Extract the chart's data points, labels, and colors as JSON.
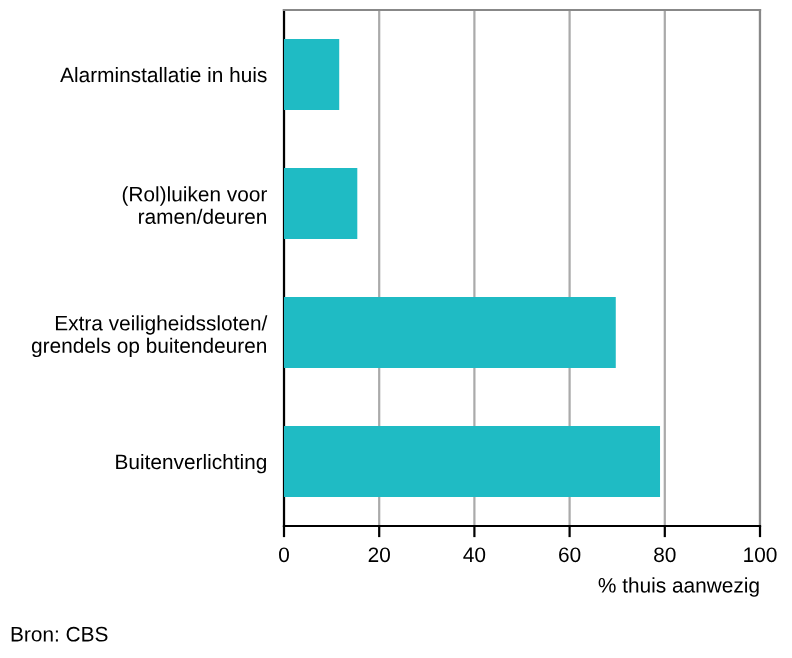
{
  "chart_data": {
    "type": "bar",
    "orientation": "horizontal",
    "categories": [
      "Alarminstallatie in huis",
      "(Rol)luiken voor\nramen/deuren",
      "Extra veiligheidssloten/\ngrendels op buitendeuren",
      "Buitenverlichting"
    ],
    "values": [
      11.6,
      15.4,
      69.7,
      79.0
    ],
    "color": "#1fbbc4",
    "xlim": [
      0,
      100
    ],
    "xticks": [
      0,
      20,
      40,
      60,
      80,
      100
    ],
    "xlabel": "% thuis aanwezig",
    "grid": "x",
    "annotations": [
      "Bron: CBS"
    ]
  }
}
